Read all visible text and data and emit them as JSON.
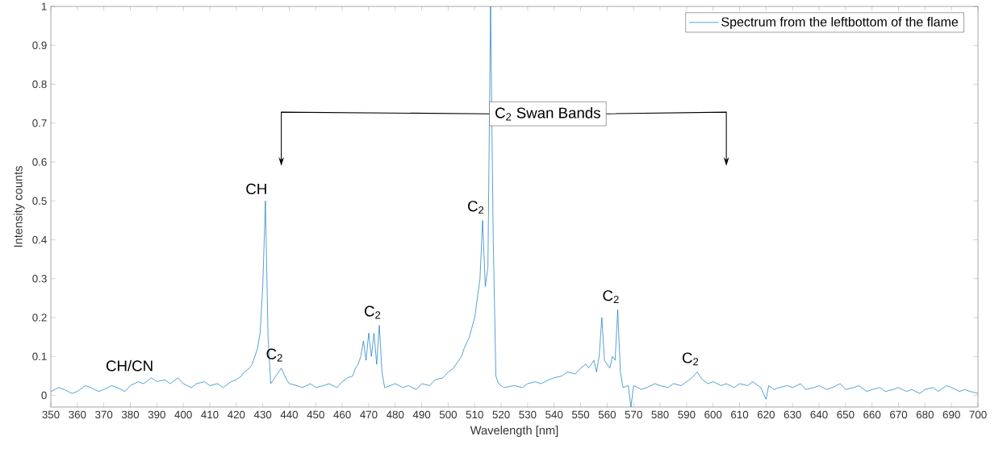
{
  "chart_data": {
    "type": "line",
    "xlabel": "Wavelength [nm]",
    "ylabel": "Intensity counts",
    "x": [
      350,
      353,
      355,
      358,
      360,
      363,
      365,
      368,
      370,
      373,
      375,
      378,
      380,
      383,
      385,
      388,
      390,
      393,
      395,
      398,
      400,
      403,
      405,
      408,
      410,
      413,
      415,
      418,
      420,
      422,
      423,
      425,
      426,
      427,
      428,
      429,
      430,
      431,
      432,
      433,
      434,
      435,
      436,
      437,
      438,
      439,
      440,
      443,
      445,
      448,
      450,
      453,
      455,
      458,
      460,
      462,
      464,
      465,
      466,
      467,
      468,
      469,
      470,
      471,
      472,
      473,
      474,
      475,
      476,
      478,
      480,
      483,
      485,
      488,
      490,
      493,
      495,
      498,
      500,
      502,
      503,
      505,
      506,
      508,
      510,
      511,
      512,
      513,
      514,
      515,
      516,
      517,
      518,
      519,
      521,
      525,
      528,
      530,
      533,
      535,
      538,
      540,
      543,
      545,
      548,
      550,
      552,
      553,
      555,
      556,
      557,
      558,
      559,
      560,
      561,
      562,
      563,
      564,
      565,
      566,
      568,
      569,
      570,
      573,
      575,
      578,
      580,
      583,
      585,
      588,
      590,
      592,
      594,
      596,
      598,
      600,
      603,
      605,
      608,
      610,
      613,
      615,
      618,
      620,
      621,
      623,
      625,
      628,
      630,
      633,
      635,
      638,
      640,
      643,
      645,
      648,
      650,
      653,
      655,
      658,
      660,
      663,
      665,
      668,
      670,
      673,
      675,
      678,
      680,
      683,
      685,
      688,
      690,
      693,
      695,
      697,
      700
    ],
    "series": [
      {
        "name": "Spectrum from the leftbottom of the flame",
        "color": "#0072bd",
        "values": [
          0.01,
          0.02,
          0.015,
          0.005,
          0.01,
          0.025,
          0.02,
          0.01,
          0.015,
          0.025,
          0.02,
          0.01,
          0.025,
          0.035,
          0.03,
          0.045,
          0.035,
          0.04,
          0.03,
          0.045,
          0.03,
          0.02,
          0.03,
          0.035,
          0.025,
          0.03,
          0.02,
          0.035,
          0.04,
          0.05,
          0.06,
          0.07,
          0.08,
          0.1,
          0.12,
          0.16,
          0.28,
          0.5,
          0.15,
          0.03,
          0.04,
          0.05,
          0.06,
          0.07,
          0.055,
          0.04,
          0.03,
          0.025,
          0.02,
          0.03,
          0.02,
          0.025,
          0.03,
          0.02,
          0.035,
          0.045,
          0.05,
          0.07,
          0.08,
          0.1,
          0.14,
          0.09,
          0.16,
          0.1,
          0.16,
          0.08,
          0.18,
          0.06,
          0.02,
          0.025,
          0.03,
          0.02,
          0.025,
          0.015,
          0.03,
          0.025,
          0.04,
          0.045,
          0.06,
          0.07,
          0.08,
          0.1,
          0.12,
          0.15,
          0.2,
          0.25,
          0.3,
          0.45,
          0.28,
          0.33,
          1.0,
          0.4,
          0.05,
          0.03,
          0.02,
          0.025,
          0.02,
          0.03,
          0.035,
          0.03,
          0.04,
          0.045,
          0.05,
          0.06,
          0.055,
          0.07,
          0.08,
          0.07,
          0.09,
          0.06,
          0.1,
          0.2,
          0.09,
          0.08,
          0.07,
          0.1,
          0.09,
          0.22,
          0.06,
          0.02,
          0.025,
          -0.03,
          0.025,
          0.015,
          0.02,
          0.03,
          0.025,
          0.02,
          0.03,
          0.025,
          0.035,
          0.045,
          0.06,
          0.04,
          0.03,
          0.035,
          0.025,
          0.03,
          0.02,
          0.03,
          0.025,
          0.035,
          0.02,
          -0.01,
          0.025,
          0.015,
          0.02,
          0.025,
          0.02,
          0.03,
          0.015,
          0.02,
          0.025,
          0.015,
          0.02,
          0.03,
          0.015,
          0.02,
          0.025,
          0.01,
          0.015,
          0.02,
          0.01,
          0.015,
          0.02,
          0.01,
          0.015,
          0.005,
          0.015,
          0.02,
          0.01,
          0.025,
          0.02,
          0.01,
          0.015,
          0.01,
          0.005
        ]
      }
    ],
    "xlim": [
      350,
      700
    ],
    "ylim": [
      -0.03,
      1
    ],
    "xticks": [
      350,
      360,
      370,
      380,
      390,
      400,
      410,
      420,
      430,
      440,
      450,
      460,
      470,
      480,
      490,
      500,
      510,
      520,
      530,
      540,
      550,
      560,
      570,
      580,
      590,
      600,
      610,
      620,
      630,
      640,
      650,
      660,
      670,
      680,
      690,
      700
    ],
    "yticks": [
      0,
      0.1,
      0.2,
      0.3,
      0.4,
      0.5,
      0.6,
      0.7,
      0.8,
      0.9,
      1
    ],
    "legend": "top right",
    "annotations": [
      {
        "text": "CH/CN",
        "x": 388,
        "y": 0.045
      },
      {
        "text": "CH",
        "x": 431,
        "y": 0.5
      },
      {
        "text": "C$_{2}$",
        "x": 437,
        "y": 0.07
      },
      {
        "text": "C$_{2}$",
        "x": 474,
        "y": 0.18
      },
      {
        "text": "C$_{2}$",
        "x": 513,
        "y": 0.45
      },
      {
        "text": "C$_{2}$",
        "x": 564,
        "y": 0.22
      },
      {
        "text": "C$_{2}$",
        "x": 594,
        "y": 0.06
      },
      "C$_{2}$ Swan Bands"
    ]
  }
}
